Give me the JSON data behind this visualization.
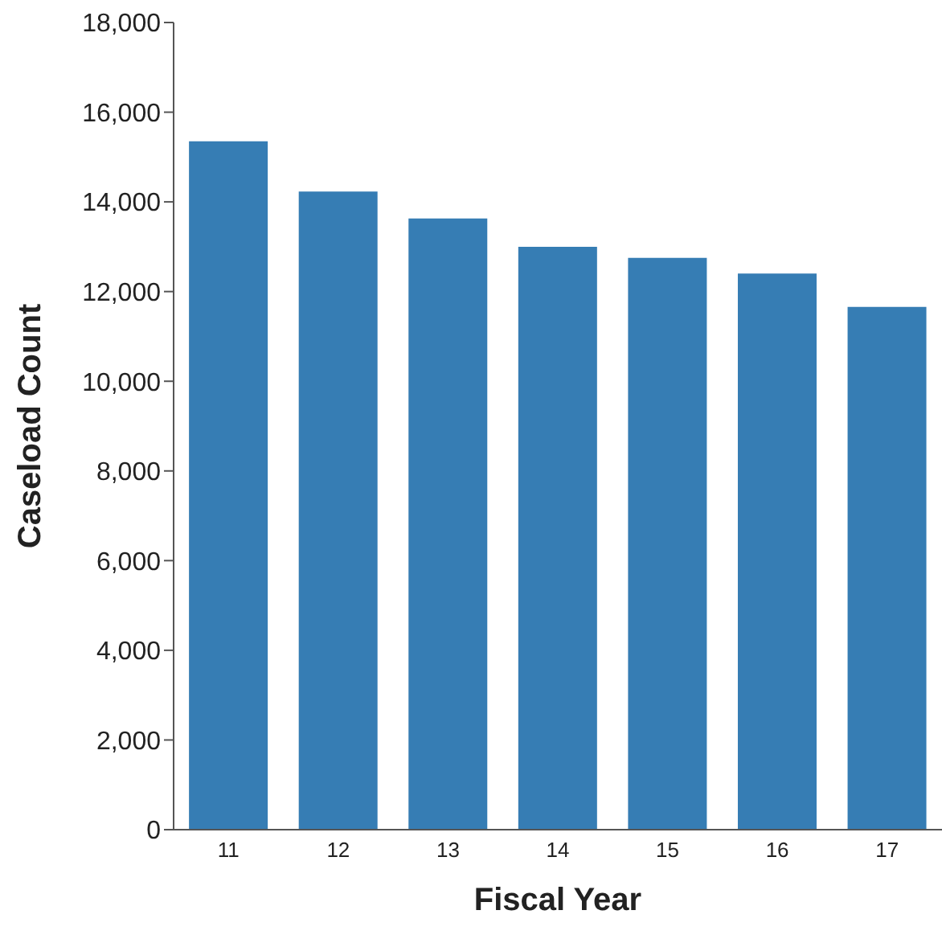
{
  "chart_data": {
    "type": "bar",
    "xlabel": "Fiscal Year",
    "ylabel": "Caseload Count",
    "categories": [
      "11",
      "12",
      "13",
      "14",
      "15",
      "16",
      "17"
    ],
    "values": [
      15350,
      14230,
      13630,
      13000,
      12750,
      12400,
      11660
    ],
    "color": "#367db4",
    "ylim": [
      0,
      18000
    ],
    "yticks": [
      0,
      {
        "value": 2000,
        "label": "2,000"
      },
      {
        "value": 4000,
        "label": "4,000"
      },
      {
        "value": 6000,
        "label": "6,000"
      },
      {
        "value": 8000,
        "label": "8,000"
      },
      {
        "value": 10000,
        "label": "10,000"
      },
      {
        "value": 12000,
        "label": "12,000"
      },
      {
        "value": 14000,
        "label": "14,000"
      },
      {
        "value": 16000,
        "label": "16,000"
      },
      {
        "value": 18000,
        "label": "18,000"
      }
    ],
    "grid": false
  }
}
